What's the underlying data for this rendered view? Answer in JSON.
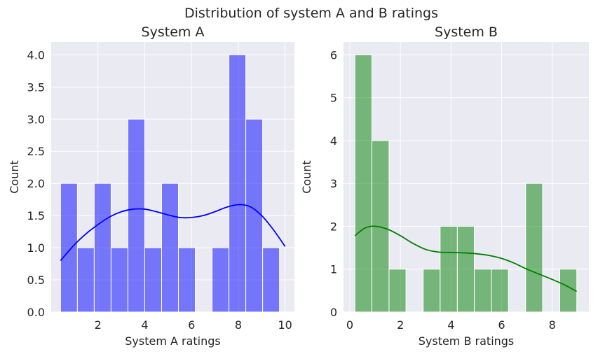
{
  "figure": {
    "suptitle": "Distribution of system A and B ratings"
  },
  "chart_data": [
    {
      "type": "bar",
      "title": "System A",
      "xlabel": "System A ratings",
      "ylabel": "Count",
      "xlim": [
        0.0,
        10.4
      ],
      "ylim": [
        0,
        4.2
      ],
      "xticks": [
        2,
        4,
        6,
        8,
        10
      ],
      "yticks": [
        0.0,
        0.5,
        1.0,
        1.5,
        2.0,
        2.5,
        3.0,
        3.5,
        4.0
      ],
      "ytick_decimals": 1,
      "grid": true,
      "color": "#0000ff",
      "bins": [
        {
          "x0": 0.4,
          "x1": 1.12,
          "count": 2
        },
        {
          "x0": 1.12,
          "x1": 1.84,
          "count": 1
        },
        {
          "x0": 1.84,
          "x1": 2.56,
          "count": 2
        },
        {
          "x0": 2.56,
          "x1": 3.28,
          "count": 1
        },
        {
          "x0": 3.28,
          "x1": 4.0,
          "count": 3
        },
        {
          "x0": 4.0,
          "x1": 4.72,
          "count": 1
        },
        {
          "x0": 4.72,
          "x1": 5.44,
          "count": 2
        },
        {
          "x0": 5.44,
          "x1": 6.16,
          "count": 1
        },
        {
          "x0": 6.16,
          "x1": 6.88,
          "count": 0
        },
        {
          "x0": 6.88,
          "x1": 7.6,
          "count": 1
        },
        {
          "x0": 7.6,
          "x1": 8.32,
          "count": 4
        },
        {
          "x0": 8.32,
          "x1": 9.04,
          "count": 3
        },
        {
          "x0": 9.04,
          "x1": 9.76,
          "count": 1
        }
      ],
      "kde": {
        "x": [
          0.4,
          1.0,
          1.5,
          2.0,
          2.5,
          3.0,
          3.5,
          4.0,
          4.5,
          5.0,
          5.5,
          6.0,
          6.5,
          7.0,
          7.5,
          8.0,
          8.5,
          9.0,
          9.5,
          10.0
        ],
        "y": [
          0.8,
          1.05,
          1.22,
          1.36,
          1.48,
          1.56,
          1.6,
          1.6,
          1.56,
          1.51,
          1.47,
          1.47,
          1.5,
          1.56,
          1.63,
          1.67,
          1.64,
          1.5,
          1.28,
          1.02
        ]
      }
    },
    {
      "type": "bar",
      "title": "System B",
      "xlabel": "System B ratings",
      "ylabel": "Count",
      "xlim": [
        -0.25,
        9.45
      ],
      "ylim": [
        0,
        6.3
      ],
      "xticks": [
        0,
        2,
        4,
        6,
        8
      ],
      "yticks": [
        0,
        1,
        2,
        3,
        4,
        5,
        6
      ],
      "ytick_decimals": 0,
      "grid": true,
      "color": "#008000",
      "bins": [
        {
          "x0": 0.2,
          "x1": 0.87,
          "count": 6
        },
        {
          "x0": 0.87,
          "x1": 1.55,
          "count": 4
        },
        {
          "x0": 1.55,
          "x1": 2.22,
          "count": 1
        },
        {
          "x0": 2.22,
          "x1": 2.9,
          "count": 0
        },
        {
          "x0": 2.9,
          "x1": 3.57,
          "count": 1
        },
        {
          "x0": 3.57,
          "x1": 4.25,
          "count": 2
        },
        {
          "x0": 4.25,
          "x1": 4.92,
          "count": 2
        },
        {
          "x0": 4.92,
          "x1": 5.6,
          "count": 1
        },
        {
          "x0": 5.6,
          "x1": 6.27,
          "count": 1
        },
        {
          "x0": 6.27,
          "x1": 6.95,
          "count": 0
        },
        {
          "x0": 6.95,
          "x1": 7.62,
          "count": 3
        },
        {
          "x0": 7.62,
          "x1": 8.3,
          "count": 0
        },
        {
          "x0": 8.3,
          "x1": 8.97,
          "count": 1
        }
      ],
      "kde": {
        "x": [
          0.2,
          0.6,
          1.0,
          1.5,
          2.0,
          2.5,
          3.0,
          3.5,
          4.0,
          4.5,
          5.0,
          5.5,
          6.0,
          6.5,
          7.0,
          7.5,
          8.0,
          8.5,
          8.97
        ],
        "y": [
          1.78,
          1.96,
          2.0,
          1.93,
          1.78,
          1.6,
          1.46,
          1.4,
          1.39,
          1.38,
          1.36,
          1.32,
          1.25,
          1.14,
          1.0,
          0.88,
          0.76,
          0.63,
          0.48
        ]
      }
    }
  ]
}
